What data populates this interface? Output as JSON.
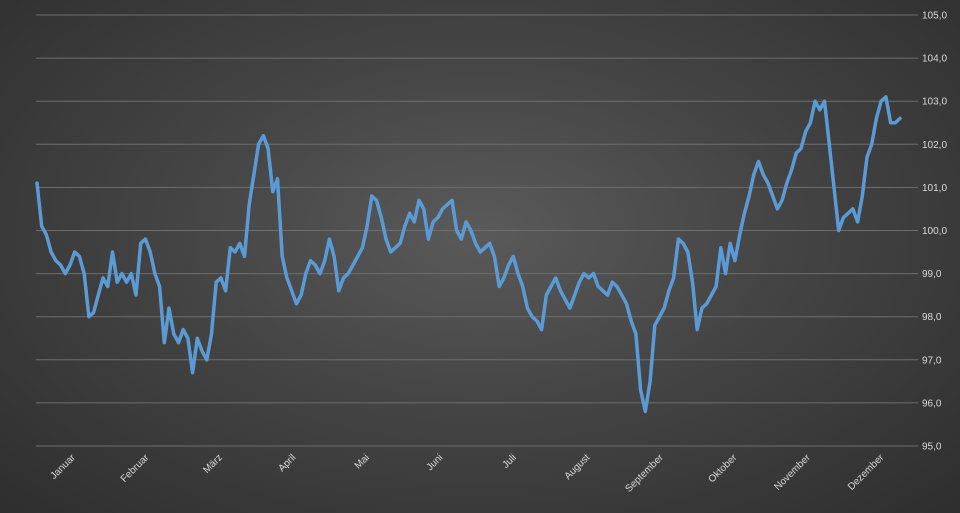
{
  "chart_data": {
    "type": "line",
    "title": "",
    "xlabel": "",
    "ylabel": "",
    "ylim": [
      95,
      105
    ],
    "y_ticks": [
      "95,0",
      "96,0",
      "97,0",
      "98,0",
      "99,0",
      "100,0",
      "101,0",
      "102,0",
      "103,0",
      "104,0",
      "105,0"
    ],
    "x_ticks": [
      "Januar",
      "Februar",
      "März",
      "April",
      "Mai",
      "Juni",
      "Juli",
      "August",
      "September",
      "Oktober",
      "November",
      "Dezember"
    ],
    "grid": true,
    "y_axis_position": "right",
    "line_color": "#5b9bd5",
    "series": [
      {
        "values": [
          101.1,
          100.1,
          99.9,
          99.5,
          99.3,
          99.2,
          99.0,
          99.2,
          99.5,
          99.4,
          99.0,
          98.0,
          98.1,
          98.5,
          98.9,
          98.7,
          99.5,
          98.8,
          99.0,
          98.8,
          99.0,
          98.5,
          99.7,
          99.8,
          99.5,
          99.0,
          98.7,
          97.4,
          98.2,
          97.6,
          97.4,
          97.7,
          97.5,
          96.7,
          97.5,
          97.2,
          97.0,
          97.6,
          98.8,
          98.9,
          98.6,
          99.6,
          99.5,
          99.7,
          99.4,
          100.6,
          101.3,
          102.0,
          102.2,
          101.9,
          100.9,
          101.2,
          99.4,
          98.9,
          98.6,
          98.3,
          98.5,
          99.0,
          99.3,
          99.2,
          99.0,
          99.3,
          99.8,
          99.4,
          98.6,
          98.9,
          99.0,
          99.2,
          99.4,
          99.6,
          100.1,
          100.8,
          100.7,
          100.3,
          99.8,
          99.5,
          99.6,
          99.7,
          100.1,
          100.4,
          100.2,
          100.7,
          100.5,
          99.8,
          100.2,
          100.3,
          100.5,
          100.6,
          100.7,
          100.0,
          99.8,
          100.2,
          100.0,
          99.7,
          99.5,
          99.6,
          99.7,
          99.4,
          98.7,
          98.9,
          99.2,
          99.4,
          99.0,
          98.7,
          98.2,
          98.0,
          97.9,
          97.7,
          98.5,
          98.7,
          98.9,
          98.6,
          98.4,
          98.2,
          98.5,
          98.8,
          99.0,
          98.9,
          99.0,
          98.7,
          98.6,
          98.5,
          98.8,
          98.7,
          98.5,
          98.3,
          97.9,
          97.6,
          96.3,
          95.8,
          96.5,
          97.8,
          98.0,
          98.2,
          98.6,
          98.9,
          99.8,
          99.7,
          99.5,
          98.8,
          97.7,
          98.2,
          98.3,
          98.5,
          98.7,
          99.6,
          99.0,
          99.7,
          99.3,
          99.9,
          100.4,
          100.8,
          101.3,
          101.6,
          101.3,
          101.1,
          100.8,
          100.5,
          100.7,
          101.1,
          101.4,
          101.8,
          101.9,
          102.3,
          102.5,
          103.0,
          102.8,
          103.0,
          102.0,
          101.0,
          100.0,
          100.3,
          100.4,
          100.5,
          100.2,
          100.8,
          101.7,
          102.0,
          102.6,
          103.0,
          103.1,
          102.5,
          102.5,
          102.6
        ]
      }
    ]
  }
}
